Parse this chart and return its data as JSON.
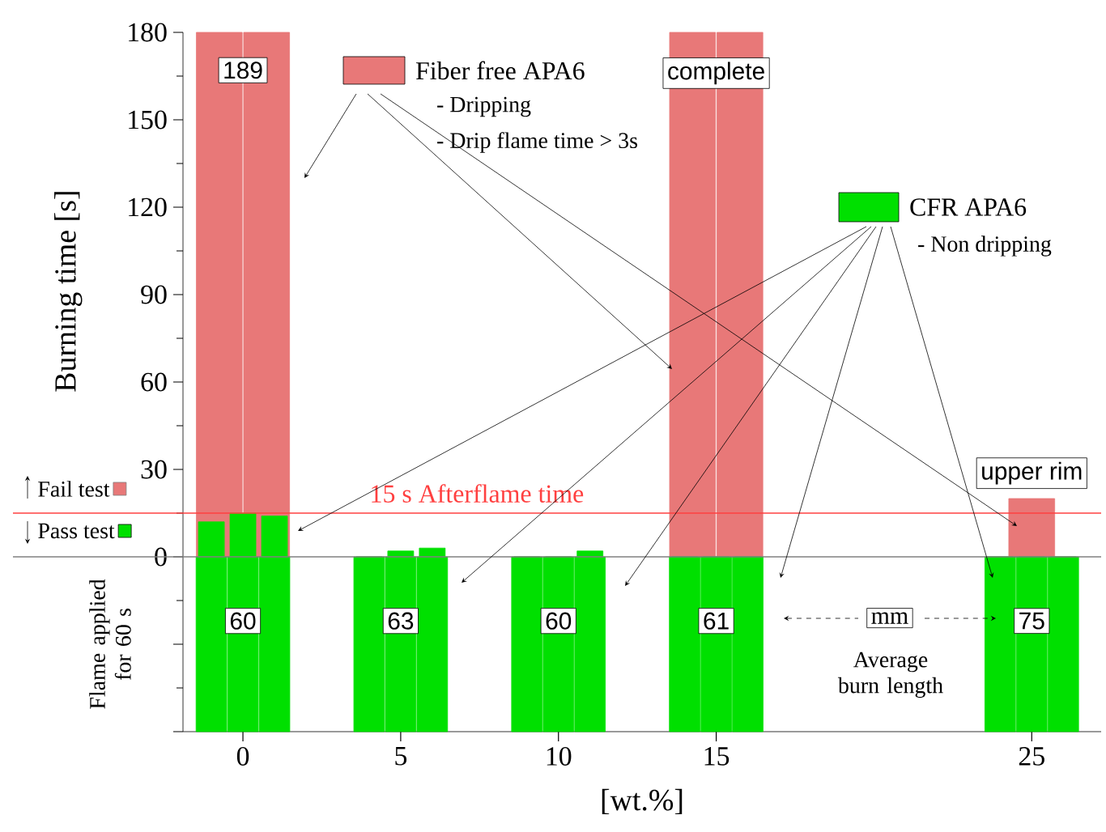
{
  "chart_data": {
    "type": "bar",
    "xlabel": "[wt.%]",
    "ylabel": "Burning time [s]",
    "legend": "top",
    "xlim": [
      -1.9,
      27.2
    ],
    "ylim": [
      -60,
      180
    ],
    "xticks": [
      0,
      5,
      10,
      15,
      25
    ],
    "yticks": [
      {
        "value": -60,
        "label": null
      },
      {
        "value": -30,
        "label": null
      },
      0,
      30,
      60,
      90,
      120,
      150,
      180
    ],
    "series": [
      {
        "name": "Fiber free APA6",
        "color": "#e87878",
        "x": [
          -0.75,
          0.75,
          14.25,
          15.75,
          25
        ],
        "values": [
          180,
          180,
          180,
          180,
          20
        ]
      },
      {
        "name": "CFR APA6",
        "color": "#00e000",
        "x": [
          -1,
          0,
          1,
          4,
          5,
          6,
          9,
          10,
          11,
          14,
          15,
          16,
          24,
          25,
          26
        ],
        "values": [
          12,
          15,
          14,
          0,
          2,
          3,
          0,
          0,
          2,
          0,
          0,
          0,
          0,
          0,
          0
        ]
      },
      {
        "color": "#00e000",
        "x": [
          -1,
          0,
          1,
          4,
          5,
          6,
          9,
          10,
          11,
          14,
          15,
          16,
          24,
          25,
          26
        ],
        "values": [
          -60,
          -60,
          -60,
          -60,
          -60,
          -60,
          -60,
          -60,
          -60,
          -60,
          -60,
          -60,
          -60,
          -60,
          -60
        ]
      }
    ],
    "ref_lines": [
      {
        "axis": "y",
        "value": 15,
        "label": "15 s Afterflame time",
        "color": "#ff4040"
      },
      {
        "axis": "y",
        "value": 0,
        "color": "#808080"
      }
    ],
    "annotations": [
      {
        "text": "189",
        "x": 0,
        "y": 167
      },
      {
        "text": "complete",
        "x": 15,
        "y": 166
      },
      {
        "text": "upper rim",
        "x": 25,
        "y": 20
      },
      {
        "text": "60",
        "x": 0,
        "y": -22
      },
      {
        "text": "63",
        "x": 5,
        "y": -22
      },
      {
        "text": "60",
        "x": 10,
        "y": -22
      },
      {
        "text": "61",
        "x": 15,
        "y": -22
      },
      {
        "text": "75",
        "x": 25,
        "y": -22
      },
      {
        "text": "mm",
        "x": 20.5,
        "y": -21
      },
      "Average burn length",
      "- Dripping",
      "- Drip flame time > 3s",
      "- Non dripping",
      "Fail test",
      "Pass test",
      "Flame applied for 60 s"
    ]
  }
}
